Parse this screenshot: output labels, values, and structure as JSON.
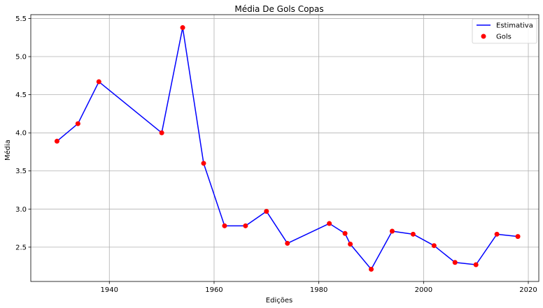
{
  "chart_data": {
    "type": "line",
    "title": "Média De Gols Copas",
    "xlabel": "Edições",
    "ylabel": "Média",
    "xlim": [
      1925,
      2022
    ],
    "ylim": [
      2.05,
      5.55
    ],
    "x_ticks": [
      1940,
      1960,
      1980,
      2000,
      2020
    ],
    "y_ticks": [
      2.5,
      3.0,
      3.5,
      4.0,
      4.5,
      5.0,
      5.5
    ],
    "x_tick_labels": [
      "1940",
      "1960",
      "1980",
      "2000",
      "2020"
    ],
    "y_tick_labels": [
      "2.5",
      "3.0",
      "3.5",
      "4.0",
      "4.5",
      "5.0",
      "5.5"
    ],
    "grid": true,
    "legend_position": "top-right",
    "series": [
      {
        "name": "Estimativa",
        "kind": "line",
        "color": "#0000ff",
        "x": [
          1930,
          1934,
          1938,
          1950,
          1954,
          1958,
          1962,
          1966,
          1970,
          1974,
          1982,
          1985,
          1986,
          1990,
          1994,
          1998,
          2002,
          2006,
          2010,
          2014,
          2018
        ],
        "y": [
          3.89,
          4.12,
          4.67,
          4.0,
          5.38,
          3.6,
          2.78,
          2.78,
          2.97,
          2.55,
          2.81,
          2.68,
          2.54,
          2.21,
          2.71,
          2.67,
          2.52,
          2.3,
          2.27,
          2.67,
          2.64
        ]
      },
      {
        "name": "Gols",
        "kind": "scatter",
        "color": "#ff0000",
        "x": [
          1930,
          1934,
          1938,
          1950,
          1954,
          1958,
          1962,
          1966,
          1970,
          1974,
          1982,
          1985,
          1986,
          1990,
          1994,
          1998,
          2002,
          2006,
          2010,
          2014,
          2018
        ],
        "y": [
          3.89,
          4.12,
          4.67,
          4.0,
          5.38,
          3.6,
          2.78,
          2.78,
          2.97,
          2.55,
          2.81,
          2.68,
          2.54,
          2.21,
          2.71,
          2.67,
          2.52,
          2.3,
          2.27,
          2.67,
          2.64
        ]
      }
    ]
  }
}
